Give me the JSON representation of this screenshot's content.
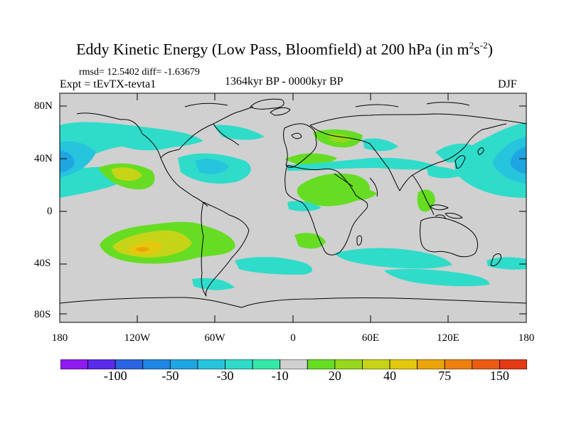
{
  "title": {
    "main": "Eddy Kinetic Energy (Low Pass, Bloomfield) at 200 hPa (in m",
    "sup1": "2",
    "mid": "s",
    "sup2": "-2",
    "end": ")"
  },
  "stats": "rmsd= 12.5402 diff= -1.63679",
  "experiment": "Expt = tEvTX-tevta1",
  "period": "1364kyr BP - 0000kyr BP",
  "season": "DJF",
  "lat_labels": [
    "80N",
    "40N",
    "0",
    "40S",
    "80S"
  ],
  "lon_labels": [
    "180",
    "120W",
    "60W",
    "0",
    "60E",
    "120E",
    "180"
  ],
  "colorbar": {
    "colors": [
      "#8f1bf0",
      "#5a2be8",
      "#2b63e0",
      "#1f86e4",
      "#1fa6e0",
      "#26c4dd",
      "#2fdcca",
      "#35e8a8",
      "#d0d0d0",
      "#66dd22",
      "#95d81c",
      "#c6d418",
      "#e3c80e",
      "#eba50c",
      "#ee8010",
      "#ea5c14",
      "#e43a16"
    ],
    "labels": [
      "-100",
      "-50",
      "-30",
      "-10",
      "20",
      "40",
      "75",
      "150"
    ]
  },
  "colors": {
    "land_bg": "#d0d0d0",
    "coast": "#000000"
  }
}
